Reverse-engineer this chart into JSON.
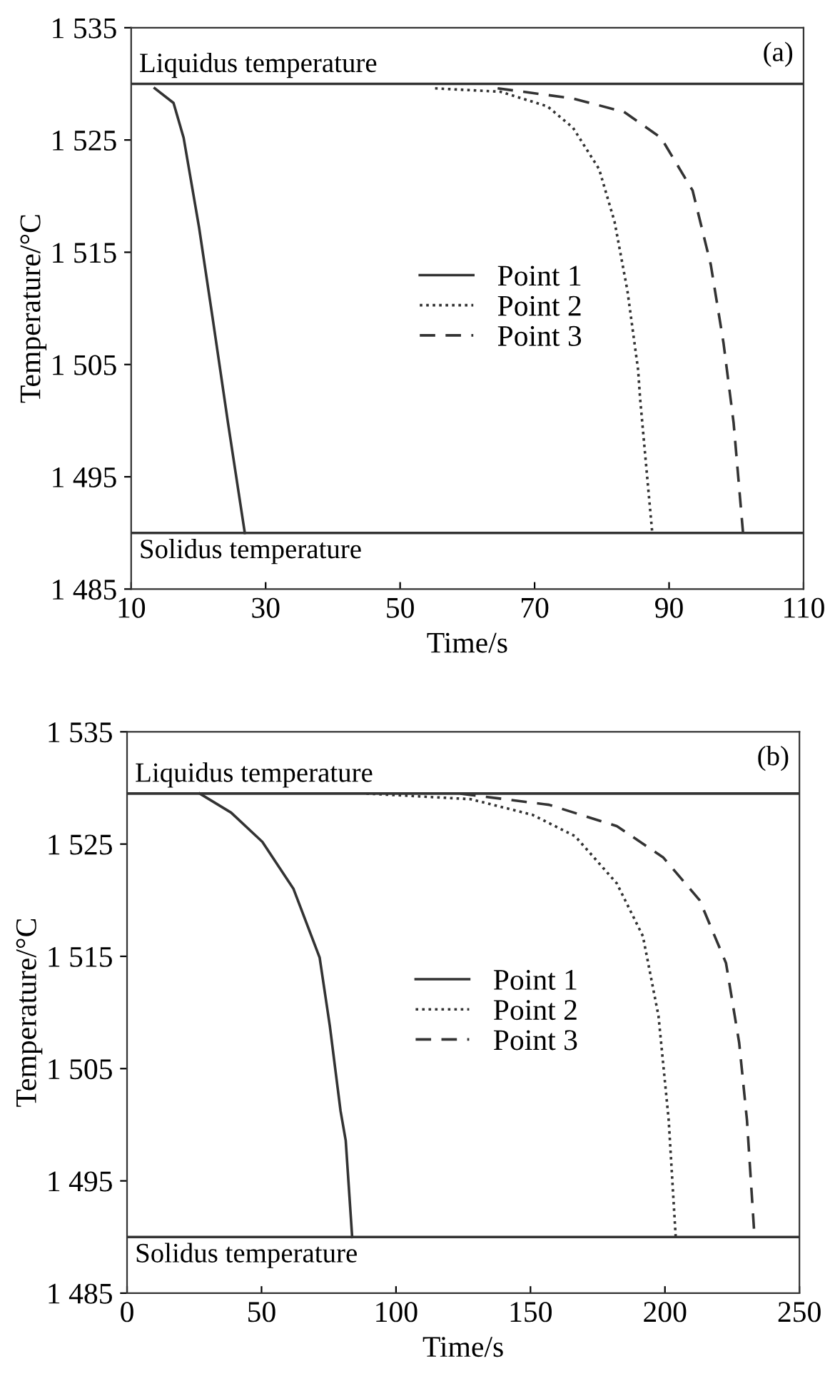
{
  "chart_data": [
    {
      "type": "line",
      "xlabel": "Time/s",
      "ylabel": "Temperature/°C",
      "xlim": [
        10,
        110
      ],
      "xticks": [
        10,
        30,
        50,
        70,
        90,
        110
      ],
      "ylim": [
        1485,
        1535
      ],
      "yticks": [
        {
          "value": 1485,
          "label": "1 485"
        },
        {
          "value": 1495,
          "label": "1 495"
        },
        {
          "value": 1505,
          "label": "1 505"
        },
        {
          "value": 1515,
          "label": "1 515"
        },
        {
          "value": 1525,
          "label": "1 525"
        },
        {
          "value": 1535,
          "label": "1 535"
        }
      ],
      "legend": "center",
      "grid": false,
      "ref_lines": [
        {
          "axis": "y",
          "value": 1530,
          "label": "Liquidus temperature",
          "color": "#333333"
        },
        {
          "axis": "y",
          "value": 1490,
          "label": "Solidus temperature",
          "color": "#333333"
        }
      ],
      "annotations": [
        "(a)"
      ],
      "series": [
        {
          "name": "Point 1",
          "color": "#333333",
          "line_style": "solid",
          "x": [
            13.5,
            16.3,
            17.8,
            20.1,
            22.1,
            24.4,
            26.9
          ],
          "values": [
            1529.6,
            1528.3,
            1525.2,
            1517.2,
            1509.2,
            1499.8,
            1490
          ]
        },
        {
          "name": "Point 2",
          "color": "#333333",
          "line_style": "dotted",
          "x": [
            55.2,
            64.9,
            71.9,
            75.7,
            79.6,
            81.9,
            83.8,
            85.4,
            85.7,
            87.5
          ],
          "values": [
            1529.6,
            1529.3,
            1528.0,
            1526.1,
            1522.4,
            1517.7,
            1511.6,
            1504.5,
            1501.9,
            1490
          ]
        },
        {
          "name": "Point 3",
          "color": "#333333",
          "line_style": "dashed",
          "x": [
            64.5,
            75.7,
            83.3,
            88.8,
            93.5,
            96.2,
            98.1,
            99.6,
            101.0
          ],
          "values": [
            1529.6,
            1528.7,
            1527.5,
            1525.2,
            1520.5,
            1513.9,
            1506.9,
            1499.8,
            1490
          ]
        }
      ]
    },
    {
      "type": "line",
      "xlabel": "Time/s",
      "ylabel": "Temperature/°C",
      "xlim": [
        0,
        250
      ],
      "xticks": [
        0,
        50,
        100,
        150,
        200,
        250
      ],
      "ylim": [
        1485,
        1535
      ],
      "yticks": [
        {
          "value": 1485,
          "label": "1 485"
        },
        {
          "value": 1495,
          "label": "1 495"
        },
        {
          "value": 1505,
          "label": "1 505"
        },
        {
          "value": 1515,
          "label": "1 515"
        },
        {
          "value": 1525,
          "label": "1 525"
        },
        {
          "value": 1535,
          "label": "1 535"
        }
      ],
      "legend": "center",
      "grid": false,
      "ref_lines": [
        {
          "axis": "y",
          "value": 1529.5,
          "label": "Liquidus temperature",
          "color": "#333333"
        },
        {
          "axis": "y",
          "value": 1490,
          "label": "Solidus temperature",
          "color": "#333333"
        }
      ],
      "annotations": [
        "(b)"
      ],
      "series": [
        {
          "name": "Point 1",
          "color": "#333333",
          "line_style": "solid",
          "x": [
            27.0,
            38.7,
            50.3,
            61.9,
            71.6,
            75.4,
            79.4,
            81.3,
            83.7
          ],
          "values": [
            1529.5,
            1527.8,
            1525.2,
            1521.0,
            1514.9,
            1508.8,
            1501.2,
            1498.6,
            1490
          ]
        },
        {
          "name": "Point 2",
          "color": "#333333",
          "line_style": "dotted",
          "x": [
            89,
            127.8,
            150.8,
            166.6,
            182.1,
            191.8,
            197.6,
            201.4,
            204.0
          ],
          "values": [
            1529.5,
            1529.0,
            1527.6,
            1525.7,
            1521.5,
            1516.8,
            1509.7,
            1500.4,
            1490
          ]
        },
        {
          "name": "Point 3",
          "color": "#333333",
          "line_style": "dashed",
          "x": [
            123.9,
            156.9,
            182.1,
            199.4,
            212.9,
            222.7,
            227.6,
            230.5,
            233.3
          ],
          "values": [
            1529.5,
            1528.5,
            1526.6,
            1523.8,
            1520.0,
            1514.4,
            1507.3,
            1500.4,
            1490
          ]
        }
      ]
    }
  ]
}
